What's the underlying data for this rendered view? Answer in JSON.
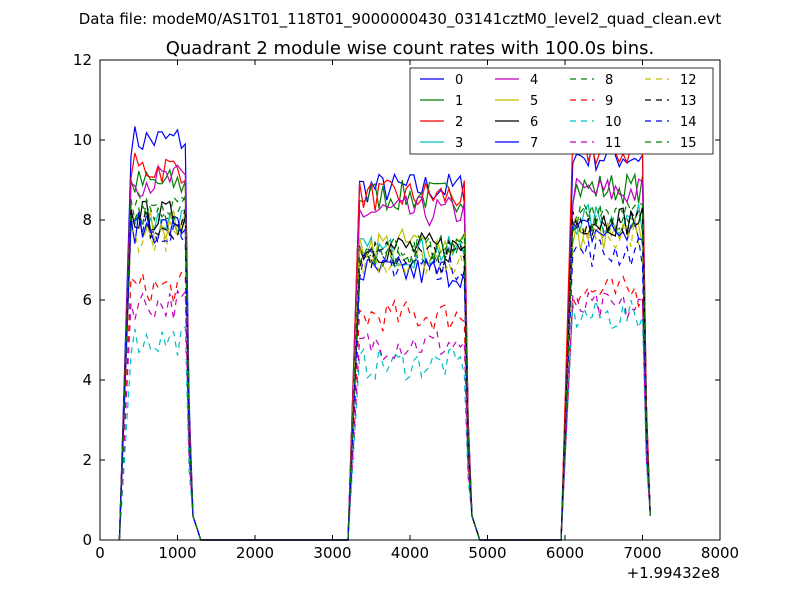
{
  "suptitle": "Data file: modeM0/AS1T01_118T01_9000000430_03141cztM0_level2_quad_clean.evt",
  "chart_data": {
    "type": "line",
    "title": "Quadrant 2 module wise count rates with 100.0s bins.",
    "xlabel": "",
    "ylabel": "",
    "x_offset_label": "+1.99432e8",
    "xlim": [
      0,
      8000
    ],
    "ylim": [
      0,
      12
    ],
    "xticks": [
      0,
      1000,
      2000,
      3000,
      4000,
      5000,
      6000,
      7000,
      8000
    ],
    "yticks": [
      0,
      2,
      4,
      6,
      8,
      10,
      12
    ],
    "grid": false,
    "legend_position": "top-right",
    "legend_columns": 4,
    "segments": [
      {
        "x_start": 400,
        "x_end": 1100
      },
      {
        "x_start": 3350,
        "x_end": 4700
      },
      {
        "x_start": 6100,
        "x_end": 7000
      }
    ],
    "series": [
      {
        "name": "0",
        "color": "#0000ff",
        "dash": "solid",
        "level": [
          10.0,
          8.8,
          9.6
        ]
      },
      {
        "name": "1",
        "color": "#008000",
        "dash": "solid",
        "level": [
          8.9,
          8.6,
          8.8
        ]
      },
      {
        "name": "2",
        "color": "#ff0000",
        "dash": "solid",
        "level": [
          9.3,
          8.6,
          9.7
        ]
      },
      {
        "name": "3",
        "color": "#00bfbf",
        "dash": "solid",
        "level": [
          8.0,
          7.2,
          8.0
        ]
      },
      {
        "name": "4",
        "color": "#bf00bf",
        "dash": "solid",
        "level": [
          9.0,
          8.2,
          8.7
        ]
      },
      {
        "name": "5",
        "color": "#bfbf00",
        "dash": "solid",
        "level": [
          7.9,
          7.4,
          7.6
        ]
      },
      {
        "name": "6",
        "color": "#000000",
        "dash": "solid",
        "level": [
          8.1,
          7.3,
          8.0
        ]
      },
      {
        "name": "7",
        "color": "#0000ff",
        "dash": "solid",
        "level": [
          7.8,
          6.7,
          7.7
        ]
      },
      {
        "name": "8",
        "color": "#008000",
        "dash": "dashed",
        "level": [
          8.3,
          7.2,
          8.0
        ]
      },
      {
        "name": "9",
        "color": "#ff0000",
        "dash": "dashed",
        "level": [
          6.3,
          5.6,
          6.2
        ]
      },
      {
        "name": "10",
        "color": "#00bfbf",
        "dash": "dashed",
        "level": [
          5.0,
          4.4,
          5.6
        ]
      },
      {
        "name": "11",
        "color": "#bf00bf",
        "dash": "dashed",
        "level": [
          5.9,
          4.9,
          5.8
        ]
      },
      {
        "name": "12",
        "color": "#bfbf00",
        "dash": "dashed",
        "level": [
          7.6,
          7.0,
          7.7
        ]
      },
      {
        "name": "13",
        "color": "#000000",
        "dash": "dashed",
        "level": [
          7.9,
          7.1,
          8.0
        ]
      },
      {
        "name": "14",
        "color": "#0000ff",
        "dash": "dashed",
        "level": [
          7.8,
          6.9,
          7.2
        ]
      },
      {
        "name": "15",
        "color": "#008000",
        "dash": "dashed",
        "level": [
          8.2,
          7.3,
          8.1
        ]
      }
    ]
  }
}
